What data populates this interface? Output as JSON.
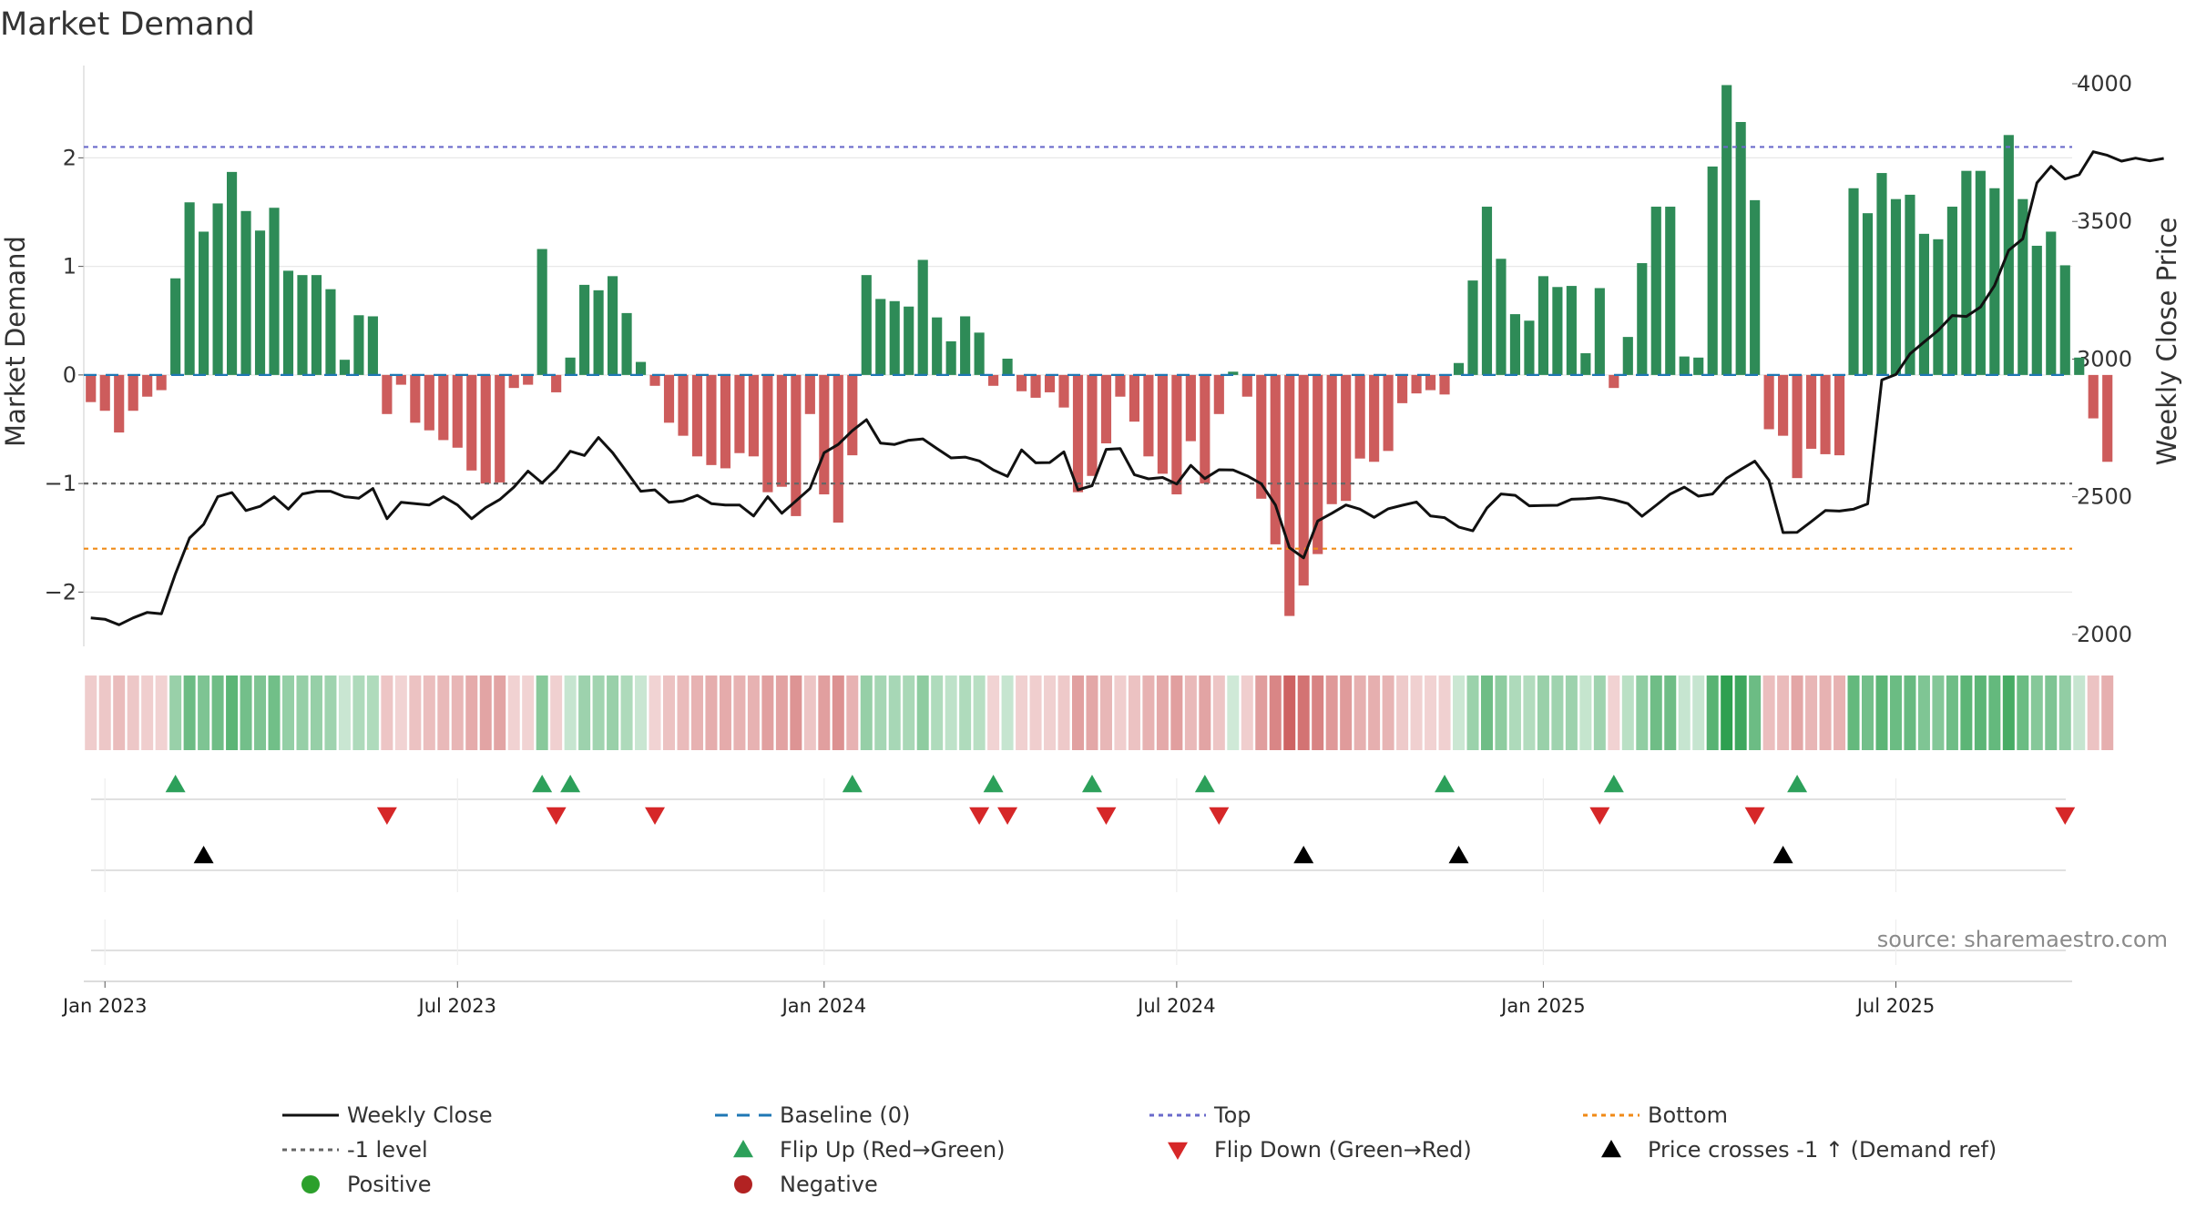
{
  "chart_data": {
    "type": "bar",
    "title": "Market Demand",
    "ylabel": "Market Demand",
    "y2label": "Weekly Close Price",
    "ylim": [
      -2.5,
      2.85
    ],
    "y2lim": [
      1940,
      4000
    ],
    "yticks": [
      -2,
      -1,
      0,
      1,
      2
    ],
    "ytick_labels": [
      "−2",
      "−1",
      "0",
      "1",
      "2"
    ],
    "y2ticks": [
      2000,
      2500,
      3000,
      3500,
      4000
    ],
    "y2tick_labels": [
      "2000",
      "2500",
      "3000",
      "3500",
      "4000"
    ],
    "xlim": [
      -0.5,
      140.5
    ],
    "xticks": [
      1,
      26,
      52,
      77,
      103,
      128
    ],
    "xtick_labels": [
      "Jan 2023",
      "Jul 2023",
      "Jan 2024",
      "Jul 2024",
      "Jan 2025",
      "Jul 2025"
    ],
    "reference_lines": [
      {
        "name": "Top",
        "value": 2.1,
        "color": "#6a6acb"
      },
      {
        "name": "-1 level",
        "value": -1.0,
        "color": "#666666"
      },
      {
        "name": "Bottom",
        "value": -1.6,
        "color": "#f08a16"
      },
      {
        "name": "Baseline (0)",
        "value": 0,
        "color": "#1f77b4"
      }
    ],
    "series": [
      {
        "name": "Market Demand",
        "type": "bar",
        "values": [
          -0.25,
          -0.33,
          -0.53,
          -0.33,
          -0.2,
          -0.14,
          0.89,
          1.59,
          1.32,
          1.58,
          1.87,
          1.51,
          1.33,
          1.54,
          0.96,
          0.92,
          0.92,
          0.79,
          0.14,
          0.55,
          0.54,
          -0.36,
          -0.09,
          -0.44,
          -0.51,
          -0.6,
          -0.67,
          -0.88,
          -1.0,
          -0.99,
          -0.12,
          -0.09,
          1.16,
          -0.16,
          0.16,
          0.83,
          0.78,
          0.91,
          0.57,
          0.12,
          -0.1,
          -0.44,
          -0.56,
          -0.75,
          -0.83,
          -0.86,
          -0.72,
          -0.75,
          -1.08,
          -1.03,
          -1.3,
          -0.36,
          -1.1,
          -1.36,
          -0.74,
          0.92,
          0.7,
          0.68,
          0.63,
          1.06,
          0.53,
          0.31,
          0.54,
          0.39,
          -0.1,
          0.15,
          -0.15,
          -0.21,
          -0.16,
          -0.3,
          -1.08,
          -0.93,
          -0.63,
          -0.2,
          -0.43,
          -0.75,
          -0.91,
          -1.1,
          -0.61,
          -1.0,
          -0.36,
          0.03,
          -0.2,
          -1.14,
          -1.56,
          -2.22,
          -1.94,
          -1.65,
          -1.19,
          -1.16,
          -0.77,
          -0.8,
          -0.7,
          -0.26,
          -0.17,
          -0.14,
          -0.18,
          0.11,
          0.87,
          1.55,
          1.07,
          0.56,
          0.5,
          0.91,
          0.81,
          0.82,
          0.2,
          0.8,
          -0.12,
          0.35,
          1.03,
          1.55,
          1.55,
          0.17,
          0.16,
          1.92,
          2.67,
          2.33,
          1.61,
          -0.5,
          -0.56,
          -0.95,
          -0.68,
          -0.73,
          -0.74,
          1.72,
          1.49,
          1.86,
          1.62,
          1.66,
          1.3,
          1.25,
          1.55,
          1.88,
          1.88,
          1.72,
          2.21,
          1.62,
          1.19,
          1.32,
          1.01,
          0.16,
          -0.4,
          -0.8
        ]
      },
      {
        "name": "Weekly Close",
        "type": "line",
        "axis": "y2",
        "values": [
          2060,
          2055,
          2035,
          2060,
          2080,
          2075,
          2220,
          2350,
          2400,
          2500,
          2515,
          2450,
          2465,
          2500,
          2455,
          2510,
          2520,
          2520,
          2500,
          2495,
          2530,
          2420,
          2480,
          2475,
          2470,
          2500,
          2470,
          2420,
          2460,
          2490,
          2535,
          2593,
          2550,
          2600,
          2665,
          2650,
          2715,
          2660,
          2590,
          2520,
          2525,
          2480,
          2485,
          2505,
          2475,
          2470,
          2470,
          2430,
          2500,
          2440,
          2485,
          2530,
          2660,
          2690,
          2740,
          2780,
          2695,
          2690,
          2705,
          2710,
          2675,
          2641,
          2644,
          2630,
          2597,
          2574,
          2670,
          2623,
          2624,
          2663,
          2525,
          2540,
          2672,
          2675,
          2580,
          2565,
          2570,
          2546,
          2614,
          2566,
          2598,
          2597,
          2576,
          2547,
          2470,
          2315,
          2278,
          2412,
          2440,
          2470,
          2455,
          2425,
          2456,
          2469,
          2481,
          2430,
          2424,
          2390,
          2376,
          2459,
          2510,
          2505,
          2467,
          2468,
          2469,
          2491,
          2493,
          2497,
          2489,
          2475,
          2429,
          2469,
          2510,
          2535,
          2502,
          2510,
          2567,
          2599,
          2629,
          2560,
          2370,
          2371,
          2410,
          2450,
          2448,
          2455,
          2474,
          2924,
          2944,
          3019,
          3062,
          3104,
          3158,
          3155,
          3189,
          3267,
          3395,
          3437,
          3640,
          3700,
          3654,
          3670,
          3753,
          3740,
          3719,
          3730,
          3720,
          3729
        ]
      },
      {
        "name": "Flip Up (Red→Green)",
        "type": "scatter",
        "x": [
          6,
          32,
          34,
          54,
          64,
          71,
          79,
          96,
          108,
          121
        ]
      },
      {
        "name": "Flip Down (Green→Red)",
        "type": "scatter",
        "x": [
          21,
          33,
          40,
          63,
          65,
          72,
          80,
          107,
          118,
          140
        ]
      },
      {
        "name": "Price crosses -1 ↑ (Demand ref)",
        "type": "scatter",
        "x": [
          8,
          86,
          97,
          120
        ]
      }
    ],
    "heat_strip": {
      "name": "Market Demand",
      "positive_color": "#2a9a4e",
      "negative_color": "#c24848"
    }
  },
  "annotations": {
    "source": "source: sharemaestro.com"
  },
  "legend": {
    "items": [
      {
        "label": "Weekly Close",
        "marker": "line",
        "color": "#111111"
      },
      {
        "label": "Baseline (0)",
        "marker": "dash",
        "color": "#1f77b4"
      },
      {
        "label": "Top",
        "marker": "dotted",
        "color": "#6a6acb"
      },
      {
        "label": "Bottom",
        "marker": "dotted",
        "color": "#f08a16"
      },
      {
        "label": "-1 level",
        "marker": "dotted",
        "color": "#666666"
      },
      {
        "label": "Flip Up (Red→Green)",
        "marker": "triangle-up",
        "color": "#2ca05a"
      },
      {
        "label": "Flip Down (Green→Red)",
        "marker": "triangle-down",
        "color": "#d62728"
      },
      {
        "label": "Price crosses -1 ↑ (Demand ref)",
        "marker": "triangle-up",
        "color": "#000000"
      },
      {
        "label": "Positive",
        "marker": "circle",
        "color": "#2ca02c"
      },
      {
        "label": "Negative",
        "marker": "circle",
        "color": "#b22222"
      }
    ]
  },
  "colors": {
    "positive_bar": "#2e8b57",
    "negative_bar": "#cd5c5c",
    "line": "#111111"
  }
}
